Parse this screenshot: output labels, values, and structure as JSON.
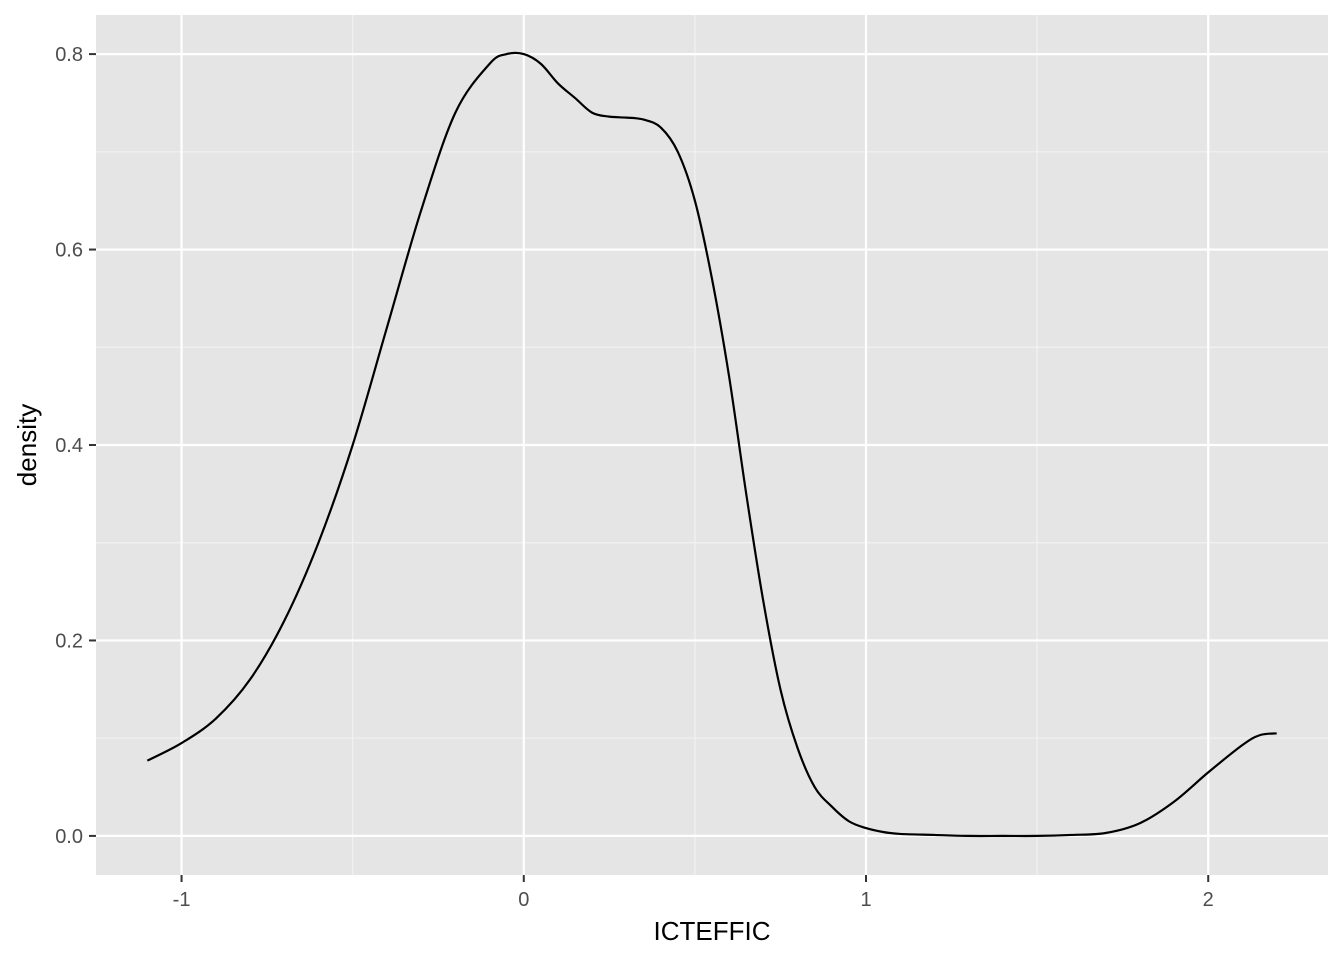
{
  "chart_data": {
    "type": "area",
    "title": "",
    "xlabel": "ICTEFFIC",
    "ylabel": "density",
    "xlim": [
      -1.25,
      2.35
    ],
    "ylim": [
      -0.04,
      0.84
    ],
    "x_ticks": [
      -1,
      0,
      1,
      2
    ],
    "x_tick_labels": [
      "-1",
      "0",
      "1",
      "2"
    ],
    "x_minor_ticks": [
      -0.5,
      0.5,
      1.5
    ],
    "y_ticks": [
      0.0,
      0.2,
      0.4,
      0.6,
      0.8
    ],
    "y_tick_labels": [
      "0.0",
      "0.2",
      "0.4",
      "0.6",
      "0.8"
    ],
    "y_minor_ticks": [
      0.1,
      0.3,
      0.5,
      0.7
    ],
    "grid": true,
    "legend": "none",
    "colors": {
      "panel_background": "#e5e5e5",
      "grid_major": "#ffffff",
      "grid_minor": "#f2f2f2",
      "line": "#000000"
    },
    "series": [
      {
        "x": [
          -1.1,
          -1.0,
          -0.9,
          -0.8,
          -0.7,
          -0.6,
          -0.5,
          -0.4,
          -0.3,
          -0.2,
          -0.1,
          -0.05,
          0.0,
          0.05,
          0.1,
          0.15,
          0.2,
          0.25,
          0.3,
          0.35,
          0.4,
          0.45,
          0.5,
          0.55,
          0.6,
          0.65,
          0.7,
          0.75,
          0.8,
          0.85,
          0.9,
          0.95,
          1.0,
          1.05,
          1.1,
          1.2,
          1.3,
          1.4,
          1.5,
          1.6,
          1.7,
          1.8,
          1.9,
          2.0,
          2.1,
          2.15,
          2.2
        ],
        "values": [
          0.077,
          0.095,
          0.12,
          0.16,
          0.22,
          0.3,
          0.4,
          0.52,
          0.64,
          0.74,
          0.79,
          0.8,
          0.8,
          0.79,
          0.77,
          0.755,
          0.74,
          0.736,
          0.735,
          0.733,
          0.725,
          0.7,
          0.65,
          0.57,
          0.47,
          0.35,
          0.24,
          0.15,
          0.09,
          0.05,
          0.03,
          0.015,
          0.008,
          0.004,
          0.002,
          0.001,
          0.0,
          0.0,
          0.0,
          0.001,
          0.003,
          0.013,
          0.035,
          0.065,
          0.093,
          0.103,
          0.105
        ]
      }
    ]
  }
}
